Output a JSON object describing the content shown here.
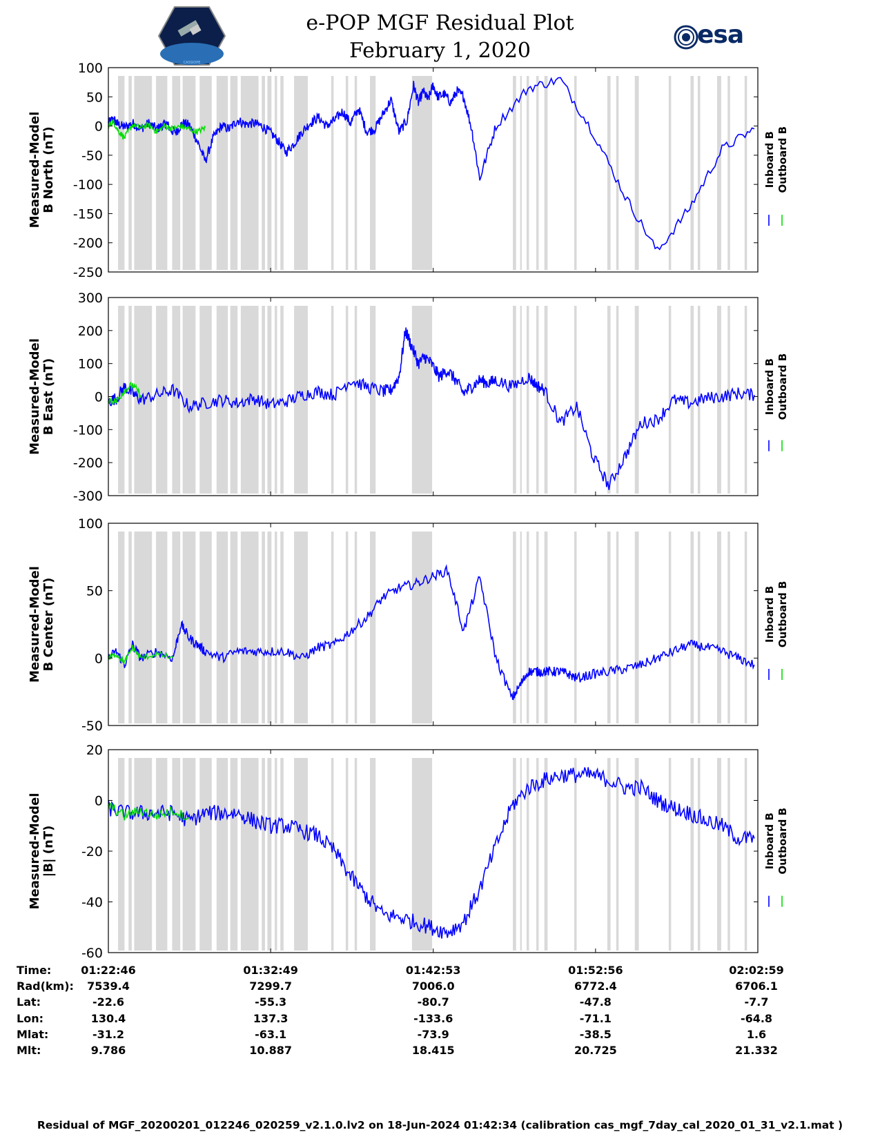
{
  "header": {
    "title": "e-POP MGF Residual Plot",
    "date": "February 1, 2020",
    "esa_logo_text": "esa",
    "mission_logo_text": "CASSIOPE"
  },
  "colors": {
    "inboard": "#0000ff",
    "outboard": "#00dd00",
    "shade": "#d9d9d9"
  },
  "chart_data": [
    {
      "type": "line",
      "ylabel": [
        "Measured-Model",
        "B North (nT)"
      ],
      "ylim": [
        -250,
        100
      ],
      "yticks": [
        100,
        50,
        0,
        -50,
        -100,
        -150,
        -200,
        -250
      ],
      "legend": [
        "Inboard B",
        "Outboard B"
      ],
      "series": [
        {
          "name": "Inboard B",
          "x": [
            0,
            0.3,
            0.6,
            1.0,
            1.5,
            2.0,
            2.5,
            3.0,
            3.3,
            3.6,
            3.9,
            4.2,
            4.6,
            5.0,
            5.5,
            6.0,
            6.5,
            7.0,
            7.5,
            8.0,
            8.5,
            9.0,
            9.5,
            10.0,
            10.5,
            11.0,
            11.5,
            12.0,
            12.5,
            13.0,
            13.5,
            14.0,
            14.5,
            15.0,
            15.5,
            16.0,
            16.5,
            17.0,
            17.5,
            18.0,
            18.5,
            18.9,
            19.2,
            19.5,
            19.8,
            20.1,
            20.4,
            20.8,
            21.2,
            21.6,
            22.0,
            22.5,
            23.0,
            24.0,
            26.0,
            28.0,
            30.0,
            32.0,
            34.0,
            36.0,
            38.0,
            40.0
          ],
          "y": [
            5,
            12,
            3,
            -2,
            5,
            -5,
            5,
            -5,
            0,
            5,
            -8,
            -10,
            5,
            2,
            -25,
            -60,
            -20,
            0,
            -5,
            10,
            3,
            5,
            0,
            -10,
            -25,
            -45,
            -30,
            -10,
            5,
            15,
            0,
            10,
            25,
            5,
            30,
            -10,
            -5,
            20,
            45,
            -10,
            10,
            70,
            40,
            60,
            45,
            70,
            50,
            55,
            40,
            60,
            50,
            -5,
            -90,
            0,
            65,
            80,
            -10,
            -120,
            -215,
            -140,
            -40,
            -5
          ]
        },
        {
          "name": "Outboard B",
          "x": [
            0,
            0.3,
            0.6,
            1.0,
            1.5,
            2.0,
            2.5,
            3.0,
            3.5,
            4.0,
            4.5,
            5.0,
            5.5,
            6.0
          ],
          "y": [
            0,
            8,
            -8,
            -20,
            2,
            -3,
            2,
            -10,
            0,
            -5,
            0,
            -5,
            -10,
            -3
          ]
        }
      ]
    },
    {
      "type": "line",
      "ylabel": [
        "Measured-Model",
        "B East (nT)"
      ],
      "ylim": [
        -300,
        300
      ],
      "yticks": [
        300,
        200,
        100,
        0,
        -100,
        -200,
        -300
      ],
      "legend": [
        "Inboard B",
        "Outboard B"
      ],
      "series": [
        {
          "name": "Inboard B",
          "x": [
            0,
            0.5,
            1.0,
            1.5,
            2.0,
            3.0,
            4.0,
            5.0,
            6.0,
            7.0,
            8.0,
            9.0,
            10.0,
            11.0,
            12.0,
            13.0,
            14.0,
            15.0,
            16.0,
            17.0,
            17.5,
            18.0,
            18.4,
            18.8,
            19.2,
            19.6,
            20.0,
            20.5,
            21.0,
            21.5,
            22.0,
            22.5,
            23.0,
            23.5,
            24.0,
            25.0,
            26.0,
            26.5,
            27.0,
            28.0,
            29.0,
            30.0,
            31.0,
            32.0,
            33.0,
            34.0,
            35.0,
            36.0,
            37.0,
            38.0,
            39.0,
            40.0
          ],
          "y": [
            -15,
            -5,
            30,
            10,
            -10,
            5,
            20,
            -30,
            -20,
            -10,
            -20,
            -5,
            -25,
            -15,
            5,
            15,
            5,
            50,
            30,
            15,
            20,
            60,
            200,
            150,
            100,
            120,
            100,
            60,
            80,
            50,
            10,
            30,
            50,
            40,
            50,
            30,
            60,
            35,
            20,
            -80,
            -30,
            -180,
            -270,
            -180,
            -80,
            -70,
            -10,
            -20,
            -5,
            0,
            10,
            5
          ]
        },
        {
          "name": "Outboard B",
          "x": [
            0,
            0.5,
            1.0,
            1.5,
            2.0
          ],
          "y": [
            -10,
            -15,
            20,
            35,
            5
          ]
        }
      ]
    },
    {
      "type": "line",
      "ylabel": [
        "Measured-Model",
        "B Center (nT)"
      ],
      "ylim": [
        -50,
        100
      ],
      "yticks": [
        100,
        50,
        0,
        -50
      ],
      "legend": [
        "Inboard B",
        "Outboard B"
      ],
      "series": [
        {
          "name": "Inboard B",
          "x": [
            0,
            0.5,
            1.0,
            1.5,
            2.0,
            3.0,
            4.0,
            4.5,
            5.0,
            5.5,
            6.0,
            7.0,
            8.0,
            9.0,
            10.0,
            11.0,
            12.0,
            13.0,
            14.0,
            15.0,
            16.0,
            17.0,
            18.0,
            19.0,
            20.0,
            21.0,
            22.0,
            23.0,
            24.0,
            25.0,
            25.5,
            26.0,
            26.5,
            27.0,
            27.5,
            28.0,
            28.5,
            29.0,
            30.0,
            31.0,
            32.0,
            33.0,
            34.0,
            35.0,
            36.0,
            37.0,
            38.0,
            39.0,
            40.0
          ],
          "y": [
            0,
            5,
            -5,
            10,
            0,
            5,
            0,
            25,
            15,
            10,
            5,
            0,
            5,
            5,
            5,
            5,
            0,
            8,
            10,
            20,
            30,
            45,
            52,
            55,
            60,
            65,
            20,
            60,
            0,
            -30,
            -20,
            -10,
            -10,
            -10,
            -10,
            -10,
            -12,
            -15,
            -12,
            -10,
            -8,
            -5,
            0,
            5,
            10,
            8,
            5,
            0,
            -5
          ]
        },
        {
          "name": "Outboard B",
          "x": [
            0,
            0.5,
            1.0,
            1.5,
            2.0,
            3.0,
            4.0
          ],
          "y": [
            0,
            3,
            -3,
            8,
            0,
            3,
            0
          ]
        }
      ]
    },
    {
      "type": "line",
      "ylabel": [
        "Measured-Model",
        "|B| (nT)"
      ],
      "ylim": [
        -60,
        20
      ],
      "yticks": [
        20,
        0,
        -20,
        -40,
        -60
      ],
      "legend": [
        "Inboard B",
        "Outboard B"
      ],
      "series": [
        {
          "name": "Inboard B",
          "x": [
            0,
            1.0,
            2.0,
            3.0,
            4.0,
            5.0,
            6.0,
            7.0,
            8.0,
            9.0,
            10.0,
            11.0,
            12.0,
            13.0,
            14.0,
            15.0,
            16.0,
            17.0,
            18.0,
            19.0,
            20.0,
            21.0,
            22.0,
            23.0,
            24.0,
            25.0,
            26.0,
            27.0,
            28.0,
            29.0,
            30.0,
            31.0,
            32.0,
            33.0,
            34.0,
            35.0,
            36.0,
            37.0,
            38.0,
            39.0,
            40.0
          ],
          "y": [
            -3,
            -5,
            -5,
            -5,
            -5,
            -8,
            -5,
            -5,
            -5,
            -8,
            -10,
            -10,
            -12,
            -14,
            -20,
            -30,
            -38,
            -45,
            -46,
            -48,
            -50,
            -52,
            -48,
            -35,
            -18,
            -2,
            5,
            8,
            10,
            10,
            10,
            8,
            5,
            5,
            0,
            -3,
            -5,
            -8,
            -10,
            -15,
            -15
          ]
        },
        {
          "name": "Outboard B",
          "x": [
            0,
            1.0,
            2.0,
            3.0,
            4.0,
            5.0
          ],
          "y": [
            -2,
            -6,
            -4,
            -6,
            -4,
            -7
          ]
        }
      ]
    }
  ],
  "shaded_intervals_min": [
    [
      0.6,
      1.0
    ],
    [
      1.25,
      1.45
    ],
    [
      1.6,
      2.7
    ],
    [
      2.95,
      3.65
    ],
    [
      3.95,
      4.45
    ],
    [
      4.6,
      5.4
    ],
    [
      5.65,
      6.4
    ],
    [
      6.7,
      7.4
    ],
    [
      7.55,
      8.0
    ],
    [
      8.2,
      9.3
    ],
    [
      9.5,
      9.7
    ],
    [
      9.85,
      10.1
    ],
    [
      10.3,
      10.45
    ],
    [
      10.65,
      10.85
    ],
    [
      11.5,
      12.35
    ],
    [
      13.8,
      13.95
    ],
    [
      14.7,
      14.85
    ],
    [
      15.25,
      15.4
    ],
    [
      16.2,
      16.55
    ],
    [
      18.8,
      20.05
    ],
    [
      25.05,
      25.25
    ],
    [
      25.5,
      25.6
    ],
    [
      25.9,
      26.05
    ],
    [
      26.5,
      26.65
    ],
    [
      27.0,
      27.2
    ],
    [
      28.85,
      29.0
    ],
    [
      30.9,
      31.1
    ],
    [
      31.45,
      31.6
    ],
    [
      32.6,
      32.85
    ],
    [
      34.7,
      34.85
    ],
    [
      36.05,
      36.25
    ],
    [
      36.5,
      36.65
    ],
    [
      37.7,
      37.95
    ],
    [
      38.35,
      38.5
    ],
    [
      39.4,
      39.55
    ]
  ],
  "x_axis": {
    "range_min": [
      0,
      40.22
    ],
    "tick_positions_min": [
      0,
      10.05,
      20.12,
      30.17,
      40.22
    ]
  },
  "info_table": {
    "row_labels": [
      "Time:",
      "Rad(km):",
      "Lat:",
      "Lon:",
      "Mlat:",
      "Mlt:"
    ],
    "columns": [
      [
        "01:22:46",
        "7539.4",
        "-22.6",
        "130.4",
        "-31.2",
        "9.786"
      ],
      [
        "01:32:49",
        "7299.7",
        "-55.3",
        "137.3",
        "-63.1",
        "10.887"
      ],
      [
        "01:42:53",
        "7006.0",
        "-80.7",
        "-133.6",
        "-73.9",
        "18.415"
      ],
      [
        "01:52:56",
        "6772.4",
        "-47.8",
        "-71.1",
        "-38.5",
        "20.725"
      ],
      [
        "02:02:59",
        "6706.1",
        "-7.7",
        "-64.8",
        "1.6",
        "21.332"
      ]
    ]
  },
  "footer": "Residual of MGF_20200201_012246_020259_v2.1.0.lv2 on 18-Jun-2024 01:42:34 (calibration cas_mgf_7day_cal_2020_01_31_v2.1.mat )"
}
